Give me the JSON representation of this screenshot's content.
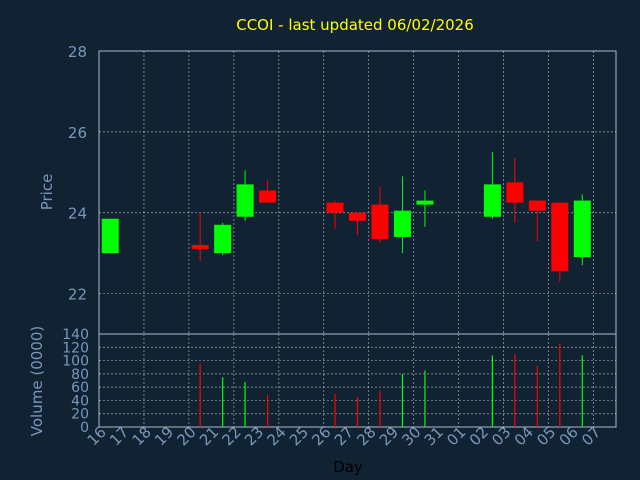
{
  "chart_data": [
    {
      "type": "candlestick",
      "title": "CCOI - last updated 06/02/2026",
      "ylabel": "Price",
      "xlabel": "Day",
      "ylim": [
        21,
        28
      ],
      "yticks": [
        "22",
        "24",
        "26",
        "28"
      ],
      "grid": true,
      "up_color": "#00ff00",
      "down_color": "#ff0000",
      "categories": [
        "16",
        "17",
        "18",
        "19",
        "20",
        "21",
        "22",
        "23",
        "24",
        "25",
        "26",
        "27",
        "28",
        "29",
        "30",
        "31",
        "01",
        "02",
        "03",
        "04",
        "05",
        "06",
        "07"
      ],
      "candles": [
        {
          "day": "16",
          "open": 23.0,
          "high": 23.85,
          "low": 23.0,
          "close": 23.85
        },
        {
          "day": "20",
          "open": 23.2,
          "high": 24.0,
          "low": 22.8,
          "close": 23.1
        },
        {
          "day": "21",
          "open": 23.0,
          "high": 23.75,
          "low": 22.95,
          "close": 23.7
        },
        {
          "day": "22",
          "open": 23.9,
          "high": 25.05,
          "low": 23.8,
          "close": 24.7
        },
        {
          "day": "23",
          "open": 24.55,
          "high": 24.8,
          "low": 24.25,
          "close": 24.25
        },
        {
          "day": "26",
          "open": 24.25,
          "high": 24.3,
          "low": 23.6,
          "close": 24.0
        },
        {
          "day": "27",
          "open": 24.0,
          "high": 24.0,
          "low": 23.45,
          "close": 23.8
        },
        {
          "day": "28",
          "open": 24.2,
          "high": 24.65,
          "low": 23.25,
          "close": 23.35
        },
        {
          "day": "29",
          "open": 23.4,
          "high": 24.9,
          "low": 23.0,
          "close": 24.05
        },
        {
          "day": "30",
          "open": 24.2,
          "high": 24.55,
          "low": 23.65,
          "close": 24.3
        },
        {
          "day": "02",
          "open": 23.9,
          "high": 25.5,
          "low": 23.85,
          "close": 24.7
        },
        {
          "day": "03",
          "open": 24.75,
          "high": 25.35,
          "low": 23.75,
          "close": 24.25
        },
        {
          "day": "04",
          "open": 24.3,
          "high": 24.3,
          "low": 23.3,
          "close": 24.05
        },
        {
          "day": "05",
          "open": 24.25,
          "high": 24.25,
          "low": 22.3,
          "close": 22.55
        },
        {
          "day": "06",
          "open": 22.9,
          "high": 24.45,
          "low": 22.7,
          "close": 24.3
        }
      ]
    },
    {
      "type": "bar",
      "ylabel": "Volume (0000)",
      "ylim": [
        0,
        140
      ],
      "yticks": [
        "0",
        "20",
        "40",
        "60",
        "80",
        "100",
        "120",
        "140"
      ],
      "grid": true,
      "volumes": [
        {
          "day": "20",
          "value": 95,
          "dir": "down"
        },
        {
          "day": "21",
          "value": 75,
          "dir": "up"
        },
        {
          "day": "22",
          "value": 68,
          "dir": "up"
        },
        {
          "day": "23",
          "value": 48,
          "dir": "down"
        },
        {
          "day": "26",
          "value": 50,
          "dir": "down"
        },
        {
          "day": "27",
          "value": 45,
          "dir": "down"
        },
        {
          "day": "28",
          "value": 55,
          "dir": "down"
        },
        {
          "day": "29",
          "value": 80,
          "dir": "up"
        },
        {
          "day": "30",
          "value": 85,
          "dir": "up"
        },
        {
          "day": "02",
          "value": 108,
          "dir": "up"
        },
        {
          "day": "03",
          "value": 110,
          "dir": "down"
        },
        {
          "day": "04",
          "value": 92,
          "dir": "down"
        },
        {
          "day": "05",
          "value": 125,
          "dir": "down"
        },
        {
          "day": "06",
          "value": 108,
          "dir": "up"
        }
      ]
    }
  ]
}
